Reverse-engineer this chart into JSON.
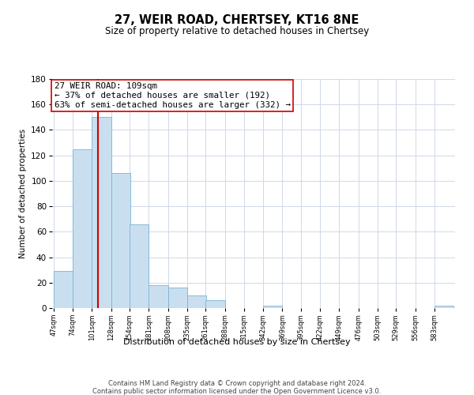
{
  "title": "27, WEIR ROAD, CHERTSEY, KT16 8NE",
  "subtitle": "Size of property relative to detached houses in Chertsey",
  "xlabel": "Distribution of detached houses by size in Chertsey",
  "ylabel": "Number of detached properties",
  "bin_edges": [
    47,
    74,
    101,
    128,
    154,
    181,
    208,
    235,
    261,
    288,
    315,
    342,
    369,
    395,
    422,
    449,
    476,
    503,
    529,
    556,
    583
  ],
  "bin_counts": [
    29,
    125,
    150,
    106,
    66,
    18,
    16,
    10,
    6,
    0,
    0,
    2,
    0,
    0,
    0,
    0,
    0,
    0,
    0,
    0,
    2
  ],
  "bar_color": "#c9dff0",
  "bar_edgecolor": "#7ab3d3",
  "vline_color": "#cc0000",
  "vline_x": 109,
  "annotation_line1": "27 WEIR ROAD: 109sqm",
  "annotation_line2": "← 37% of detached houses are smaller (192)",
  "annotation_line3": "63% of semi-detached houses are larger (332) →",
  "annotation_box_facecolor": "#ffffff",
  "annotation_box_edgecolor": "#cc0000",
  "ylim": [
    0,
    180
  ],
  "yticks": [
    0,
    20,
    40,
    60,
    80,
    100,
    120,
    140,
    160,
    180
  ],
  "tick_labels": [
    "47sqm",
    "74sqm",
    "101sqm",
    "128sqm",
    "154sqm",
    "181sqm",
    "208sqm",
    "235sqm",
    "261sqm",
    "288sqm",
    "315sqm",
    "342sqm",
    "369sqm",
    "395sqm",
    "422sqm",
    "449sqm",
    "476sqm",
    "503sqm",
    "529sqm",
    "556sqm",
    "583sqm"
  ],
  "footer1": "Contains HM Land Registry data © Crown copyright and database right 2024.",
  "footer2": "Contains public sector information licensed under the Open Government Licence v3.0.",
  "background_color": "#ffffff",
  "grid_color": "#d0d8e8"
}
